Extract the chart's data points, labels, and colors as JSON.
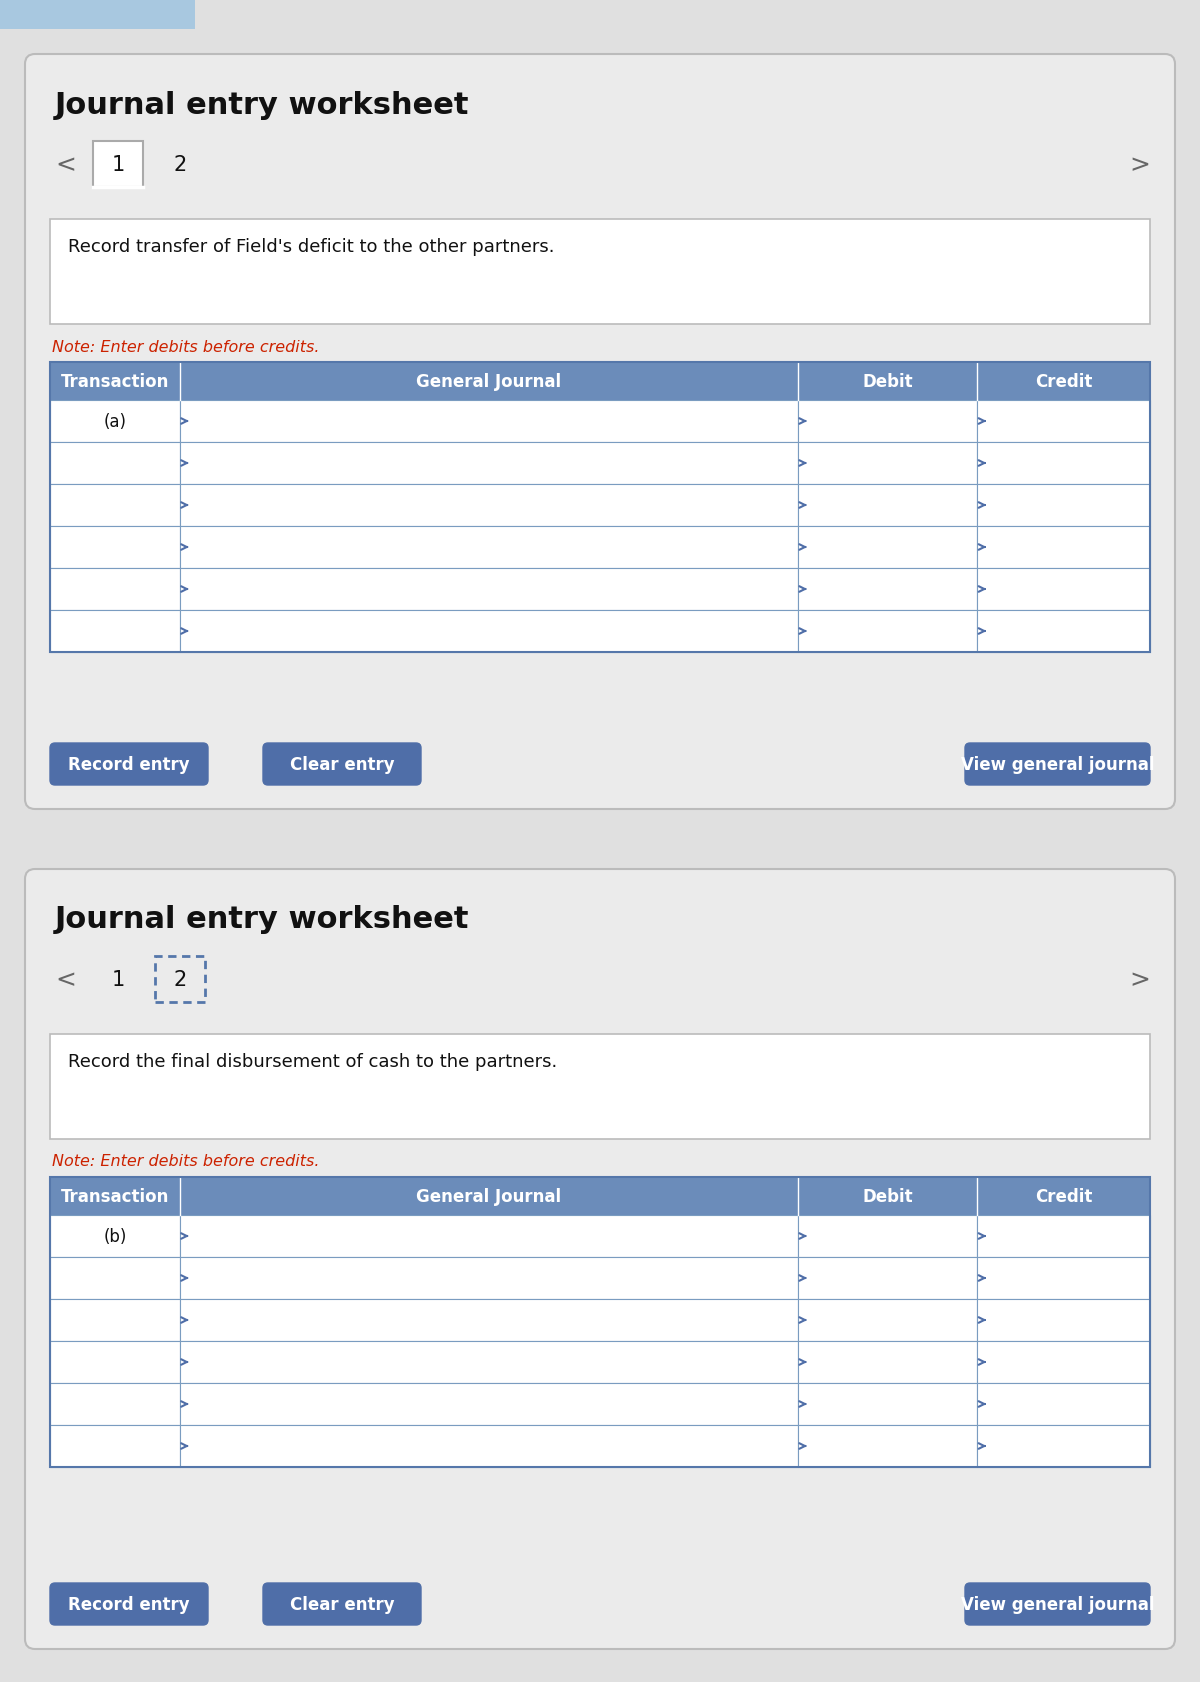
{
  "background_color": "#e0e0e0",
  "panel_bg": "#ebebeb",
  "panel_border": "#c8c8c8",
  "white": "#ffffff",
  "title": "Journal entry worksheet",
  "header_bg": "#6b8cba",
  "header_text_color": "#ffffff",
  "note_color": "#cc2200",
  "note_text": "Note: Enter debits before credits.",
  "col_headers": [
    "Transaction",
    "General Journal",
    "Debit",
    "Credit"
  ],
  "panel1": {
    "instruction": "Record transfer of Field's deficit to the other partners.",
    "transaction_label": "(a)",
    "tab_active": 1,
    "num_rows": 6
  },
  "panel2": {
    "instruction": "Record the final disbursement of cash to the partners.",
    "transaction_label": "(b)",
    "tab_active": 2,
    "num_rows": 6
  },
  "btn_bg": "#4f6ea8",
  "btn_text_color": "#ffffff",
  "btn_labels": [
    "Record entry",
    "Clear entry",
    "View general journal"
  ],
  "arrow_color": "#4f6ea8",
  "nav_color": "#666666",
  "top_bar_color": "#a8c8e0",
  "top_bar_height": 30
}
